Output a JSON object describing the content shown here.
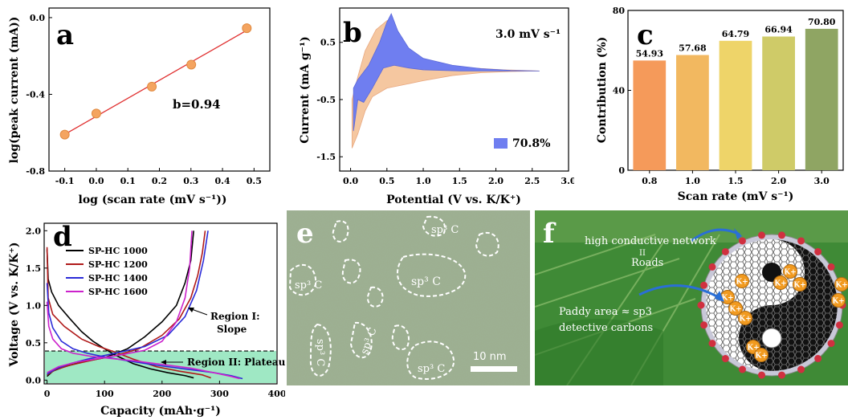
{
  "panels": {
    "a": {
      "letter": "a",
      "xlabel": "log (scan rate (mV s⁻¹))",
      "ylabel": "log(peak current (mA))",
      "annotation": "b=0.94"
    },
    "b": {
      "letter": "b",
      "xlabel": "Potential (V vs. K/K⁺)",
      "ylabel": "Current (mA g⁻¹)",
      "rate_label": "3.0 mV s⁻¹",
      "legend_label": "70.8%"
    },
    "c": {
      "letter": "c",
      "xlabel": "Scan rate (mV s⁻¹)",
      "ylabel": "Contribution (%)"
    },
    "d": {
      "letter": "d",
      "xlabel": "Capacity (mAh·g⁻¹)",
      "ylabel": "Voltage (V vs. K/K⁺)",
      "region1_line1": "Region I:",
      "region1_line2": "Slope",
      "region2": "Region II: Plateau"
    },
    "e": {
      "letter": "e",
      "scale_label": "10 nm",
      "sp_labels": [
        "sp³ C",
        "sp³ C",
        "sp³ C",
        "sp³ C",
        "sp³ C",
        "sp³ C"
      ]
    },
    "f": {
      "letter": "f",
      "label1": "high conductive network",
      "label2": "II",
      "label3": "Roads",
      "label4": "Paddy area ≈ sp3",
      "label5": "detective carbons",
      "ion_label": "K+"
    }
  },
  "chart_data": [
    {
      "type": "scatter",
      "panel": "a",
      "x": [
        -0.1,
        0.0,
        0.176,
        0.301,
        0.477
      ],
      "y": [
        -0.61,
        -0.5,
        -0.36,
        -0.245,
        -0.055
      ],
      "fit": {
        "slope": 0.94
      },
      "xlabel": "log (scan rate (mV s⁻¹))",
      "ylabel": "log(peak current (mA))",
      "xlim": [
        -0.15,
        0.55
      ],
      "ylim": [
        -0.8,
        0.05
      ],
      "xticks": [
        "-0.1",
        "0.0",
        "0.1",
        "0.2",
        "0.3",
        "0.4",
        "0.5"
      ],
      "yticks": [
        "0.0",
        "-0.4",
        "-0.8"
      ],
      "annotations": [
        "b=0.94"
      ],
      "color": "#f4a460"
    },
    {
      "type": "area",
      "panel": "b",
      "xlabel": "Potential (V vs. K/K⁺)",
      "ylabel": "Current (mA g⁻¹)",
      "xlim": [
        -0.15,
        3.0
      ],
      "ylim": [
        -1.75,
        1.1
      ],
      "xticks": [
        "0.0",
        "0.5",
        "1.0",
        "1.5",
        "2.0",
        "2.5",
        "3.0"
      ],
      "yticks": [
        "0.5",
        "-0.5",
        "-1.5"
      ],
      "series": [
        {
          "name": "",
          "upper": [
            [
              0.02,
              -0.5
            ],
            [
              0.1,
              -0.1
            ],
            [
              0.2,
              0.35
            ],
            [
              0.35,
              0.72
            ],
            [
              0.5,
              0.88
            ],
            [
              0.55,
              0.9
            ],
            [
              0.65,
              0.6
            ],
            [
              0.8,
              0.3
            ],
            [
              1.0,
              0.18
            ],
            [
              1.3,
              0.1
            ],
            [
              1.7,
              0.05
            ],
            [
              2.1,
              0.02
            ],
            [
              2.6,
              0.0
            ]
          ],
          "lower": [
            [
              0.02,
              -1.35
            ],
            [
              0.1,
              -1.1
            ],
            [
              0.2,
              -0.7
            ],
            [
              0.3,
              -0.45
            ],
            [
              0.5,
              -0.3
            ],
            [
              0.7,
              -0.25
            ],
            [
              1.0,
              -0.17
            ],
            [
              1.4,
              -0.08
            ],
            [
              1.8,
              -0.03
            ],
            [
              2.2,
              -0.01
            ],
            [
              2.6,
              0.0
            ]
          ],
          "color": "#f5c7a0"
        },
        {
          "name": "70.8%",
          "upper": [
            [
              0.04,
              -0.3
            ],
            [
              0.1,
              -0.15
            ],
            [
              0.25,
              0.1
            ],
            [
              0.4,
              0.5
            ],
            [
              0.5,
              0.85
            ],
            [
              0.56,
              1.0
            ],
            [
              0.65,
              0.7
            ],
            [
              0.8,
              0.4
            ],
            [
              1.0,
              0.22
            ],
            [
              1.4,
              0.1
            ],
            [
              1.8,
              0.04
            ],
            [
              2.2,
              0.01
            ],
            [
              2.6,
              0.0
            ]
          ],
          "lower": [
            [
              0.04,
              -1.05
            ],
            [
              0.1,
              -0.5
            ],
            [
              0.18,
              -0.55
            ],
            [
              0.3,
              -0.3
            ],
            [
              0.45,
              0.05
            ],
            [
              0.6,
              0.1
            ],
            [
              0.8,
              0.05
            ],
            [
              1.0,
              0.02
            ],
            [
              1.5,
              0.0
            ],
            [
              2.0,
              0.0
            ],
            [
              2.6,
              0.0
            ]
          ],
          "color": "#6f7ef0"
        }
      ],
      "annotations": [
        "3.0 mV s⁻¹"
      ]
    },
    {
      "type": "bar",
      "panel": "c",
      "categories": [
        "0.8",
        "1.0",
        "1.5",
        "2.0",
        "3.0"
      ],
      "values": [
        54.93,
        57.68,
        64.79,
        66.94,
        70.8
      ],
      "value_labels": [
        "54.93",
        "57.68",
        "64.79",
        "66.94",
        "70.80"
      ],
      "colors": [
        "#f59a5a",
        "#f2b860",
        "#eed469",
        "#cfcb68",
        "#8fa563"
      ],
      "xlabel": "Scan rate (mV s⁻¹)",
      "ylabel": "Contribution (%)",
      "ylim": [
        0,
        80
      ],
      "yticks": [
        "0",
        "40",
        "80"
      ]
    },
    {
      "type": "line",
      "panel": "d",
      "xlabel": "Capacity (mAh·g⁻¹)",
      "ylabel": "Voltage (V vs. K/K⁺)",
      "xlim": [
        -5,
        400
      ],
      "ylim": [
        -0.05,
        2.1
      ],
      "xticks": [
        "0",
        "100",
        "200",
        "300",
        "400"
      ],
      "yticks": [
        "0.0",
        "0.5",
        "1.0",
        "1.5",
        "2.0"
      ],
      "plateau_voltage": 0.39,
      "series": [
        {
          "name": "SP-HC 1000",
          "color": "#000000",
          "discharge": [
            [
              0,
              1.75
            ],
            [
              2,
              1.35
            ],
            [
              8,
              1.18
            ],
            [
              20,
              1.0
            ],
            [
              40,
              0.82
            ],
            [
              60,
              0.65
            ],
            [
              80,
              0.52
            ],
            [
              100,
              0.42
            ],
            [
              120,
              0.33
            ],
            [
              150,
              0.22
            ],
            [
              180,
              0.15
            ],
            [
              210,
              0.1
            ],
            [
              240,
              0.06
            ],
            [
              255,
              0.03
            ]
          ],
          "charge": [
            [
              0,
              0.05
            ],
            [
              10,
              0.12
            ],
            [
              30,
              0.18
            ],
            [
              60,
              0.24
            ],
            [
              100,
              0.3
            ],
            [
              140,
              0.42
            ],
            [
              170,
              0.58
            ],
            [
              200,
              0.78
            ],
            [
              225,
              1.0
            ],
            [
              240,
              1.3
            ],
            [
              250,
              1.6
            ],
            [
              255,
              2.0
            ]
          ]
        },
        {
          "name": "SP-HC 1200",
          "color": "#b01a1a",
          "discharge": [
            [
              0,
              1.78
            ],
            [
              2,
              1.1
            ],
            [
              10,
              0.88
            ],
            [
              30,
              0.72
            ],
            [
              60,
              0.55
            ],
            [
              90,
              0.45
            ],
            [
              120,
              0.37
            ],
            [
              150,
              0.28
            ],
            [
              190,
              0.18
            ],
            [
              230,
              0.12
            ],
            [
              270,
              0.07
            ],
            [
              285,
              0.03
            ]
          ],
          "charge": [
            [
              0,
              0.07
            ],
            [
              15,
              0.14
            ],
            [
              40,
              0.2
            ],
            [
              80,
              0.27
            ],
            [
              120,
              0.33
            ],
            [
              160,
              0.42
            ],
            [
              200,
              0.6
            ],
            [
              230,
              0.82
            ],
            [
              250,
              1.1
            ],
            [
              262,
              1.4
            ],
            [
              270,
              1.7
            ],
            [
              275,
              2.0
            ]
          ]
        },
        {
          "name": "SP-HC 1400",
          "color": "#2b2bd8",
          "discharge": [
            [
              0,
              1.3
            ],
            [
              3,
              0.9
            ],
            [
              10,
              0.7
            ],
            [
              25,
              0.52
            ],
            [
              45,
              0.42
            ],
            [
              70,
              0.36
            ],
            [
              100,
              0.31
            ],
            [
              140,
              0.26
            ],
            [
              190,
              0.2
            ],
            [
              240,
              0.15
            ],
            [
              290,
              0.1
            ],
            [
              320,
              0.06
            ],
            [
              340,
              0.02
            ]
          ],
          "charge": [
            [
              0,
              0.08
            ],
            [
              15,
              0.15
            ],
            [
              40,
              0.22
            ],
            [
              70,
              0.28
            ],
            [
              100,
              0.33
            ],
            [
              130,
              0.38
            ],
            [
              170,
              0.45
            ],
            [
              210,
              0.6
            ],
            [
              240,
              0.85
            ],
            [
              260,
              1.2
            ],
            [
              272,
              1.6
            ],
            [
              280,
              2.0
            ]
          ]
        },
        {
          "name": "SP-HC 1600",
          "color": "#cc22cc",
          "discharge": [
            [
              0,
              1.05
            ],
            [
              3,
              0.72
            ],
            [
              10,
              0.55
            ],
            [
              25,
              0.42
            ],
            [
              45,
              0.36
            ],
            [
              75,
              0.32
            ],
            [
              110,
              0.29
            ],
            [
              150,
              0.26
            ],
            [
              200,
              0.21
            ],
            [
              250,
              0.16
            ],
            [
              290,
              0.1
            ],
            [
              320,
              0.05
            ],
            [
              335,
              0.02
            ]
          ],
          "charge": [
            [
              0,
              0.1
            ],
            [
              20,
              0.18
            ],
            [
              50,
              0.24
            ],
            [
              90,
              0.29
            ],
            [
              130,
              0.34
            ],
            [
              170,
              0.4
            ],
            [
              200,
              0.52
            ],
            [
              225,
              0.78
            ],
            [
              240,
              1.1
            ],
            [
              248,
              1.5
            ],
            [
              252,
              2.0
            ]
          ]
        }
      ],
      "annotations": [
        "Region I:",
        "Slope",
        "Region II: Plateau"
      ]
    }
  ]
}
